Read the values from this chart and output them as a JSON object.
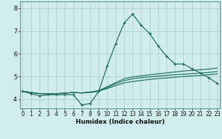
{
  "title": "",
  "xlabel": "Humidex (Indice chaleur)",
  "background_color": "#d0ecec",
  "grid_color": "#a8d0d0",
  "line_color": "#1a6b5a",
  "x_ticks": [
    0,
    1,
    2,
    3,
    4,
    5,
    6,
    7,
    8,
    9,
    10,
    11,
    12,
    13,
    14,
    15,
    16,
    17,
    18,
    19,
    20,
    21,
    22,
    23
  ],
  "y_ticks": [
    4,
    5,
    6,
    7,
    8
  ],
  "xlim": [
    -0.3,
    23.3
  ],
  "ylim": [
    3.6,
    8.3
  ],
  "lines": [
    {
      "y": [
        4.35,
        4.25,
        4.15,
        4.2,
        4.2,
        4.2,
        4.2,
        3.75,
        3.82,
        4.35,
        5.45,
        6.45,
        7.35,
        7.75,
        7.25,
        6.9,
        6.35,
        5.9,
        5.55,
        5.55,
        5.35,
        5.15,
        4.95,
        4.7
      ],
      "marker": true
    },
    {
      "y": [
        4.35,
        4.3,
        4.25,
        4.25,
        4.25,
        4.27,
        4.3,
        4.28,
        4.32,
        4.37,
        4.47,
        4.6,
        4.72,
        4.78,
        4.83,
        4.87,
        4.91,
        4.94,
        4.97,
        5.0,
        5.03,
        5.05,
        5.08,
        5.12
      ],
      "marker": false
    },
    {
      "y": [
        4.35,
        4.3,
        4.25,
        4.25,
        4.25,
        4.27,
        4.3,
        4.28,
        4.3,
        4.35,
        4.52,
        4.68,
        4.82,
        4.9,
        4.95,
        4.98,
        5.02,
        5.05,
        5.08,
        5.1,
        5.13,
        5.15,
        5.18,
        5.22
      ],
      "marker": false
    },
    {
      "y": [
        4.35,
        4.3,
        4.25,
        4.25,
        4.25,
        4.27,
        4.3,
        4.28,
        4.32,
        4.38,
        4.55,
        4.73,
        4.9,
        4.98,
        5.03,
        5.07,
        5.12,
        5.16,
        5.2,
        5.24,
        5.27,
        5.3,
        5.33,
        5.37
      ],
      "marker": false
    }
  ]
}
